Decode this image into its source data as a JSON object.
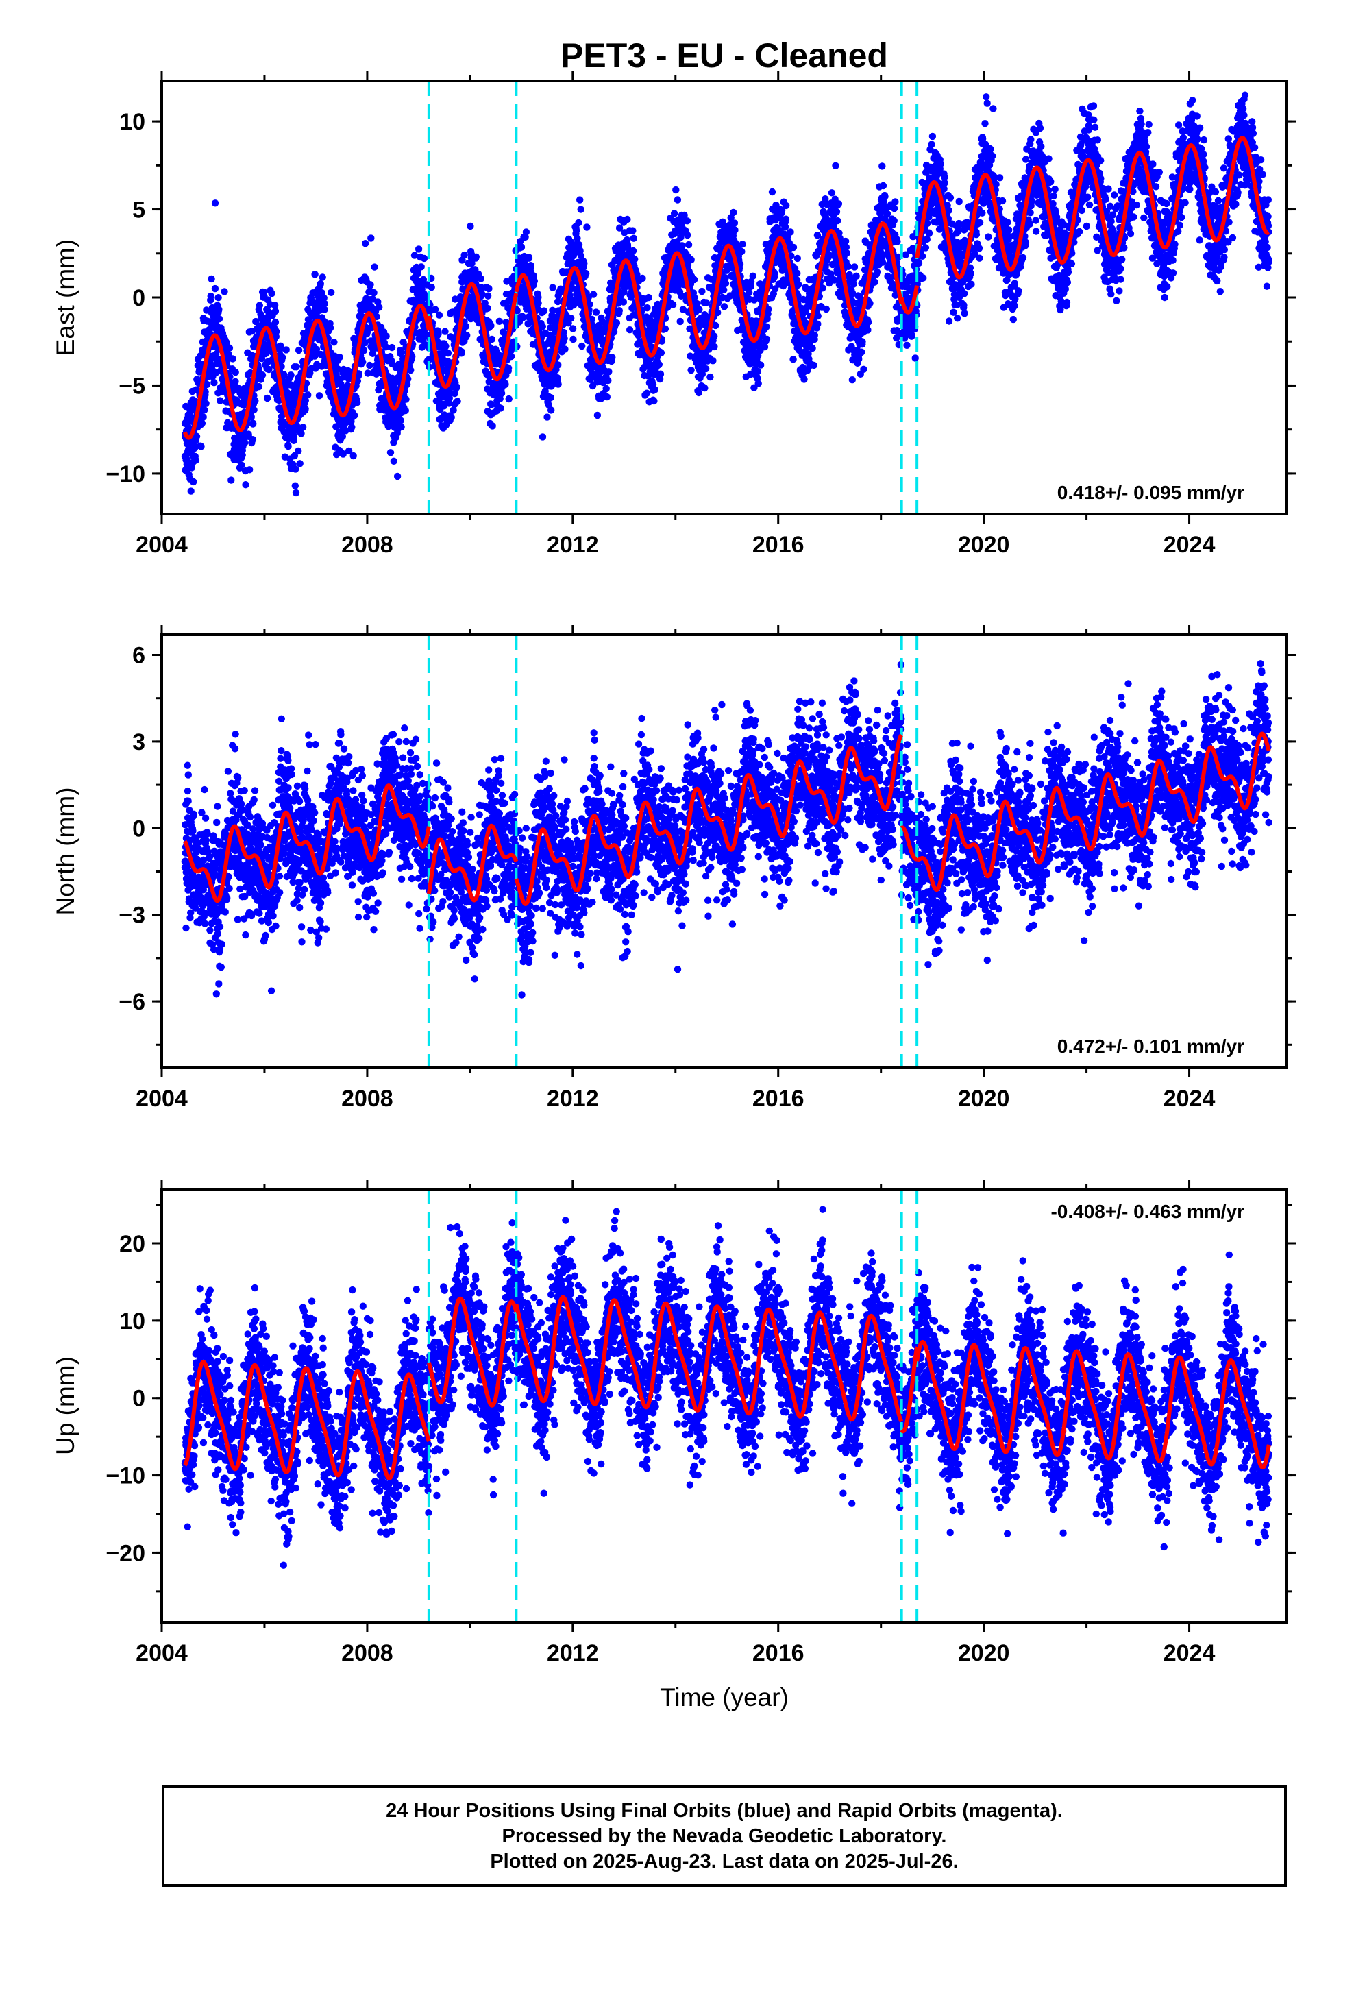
{
  "title": "PET3  - EU - Cleaned",
  "colors": {
    "data": "#0000ff",
    "model": "#ff0000",
    "offset": "#00e5ee",
    "frame": "#000000"
  },
  "chart_data": [
    {
      "type": "scatter",
      "ylabel": "East (mm)",
      "xlabel": "",
      "xlim": [
        2004.0,
        2025.9
      ],
      "ylim": [
        -12.3,
        12.3
      ],
      "xticks": [
        2004,
        2008,
        2012,
        2016,
        2020,
        2024
      ],
      "yticks": [
        -10,
        -5,
        0,
        5,
        10
      ],
      "rate_label": "0.418+/- 0.095 mm/yr",
      "rate_position": "bottom-right",
      "offsets": [
        2009.2,
        2010.9,
        2018.4,
        2018.7
      ],
      "model_segments": [
        {
          "t0": 2004.45,
          "t1": 2009.2,
          "base0": -5.2,
          "slope": 0.42,
          "amp": 2.8,
          "phase": 0.78
        },
        {
          "t0": 2009.2,
          "t1": 2010.9,
          "base0": -2.4,
          "slope": 0.42,
          "amp": 2.8,
          "phase": 0.78
        },
        {
          "t0": 2010.9,
          "t1": 2018.4,
          "base0": -1.6,
          "slope": 0.42,
          "amp": 2.8,
          "phase": 0.78
        },
        {
          "t0": 2018.4,
          "t1": 2018.7,
          "base0": 1.9,
          "slope": 0.42,
          "amp": 2.8,
          "phase": 0.78
        },
        {
          "t0": 2018.7,
          "t1": 2025.55,
          "base0": 3.6,
          "slope": 0.42,
          "amp": 2.8,
          "phase": 0.78
        }
      ],
      "scatter_noise": 1.3
    },
    {
      "type": "scatter",
      "ylabel": "North (mm)",
      "xlabel": "",
      "xlim": [
        2004.0,
        2025.9
      ],
      "ylim": [
        -8.3,
        6.7
      ],
      "xticks": [
        2004,
        2008,
        2012,
        2016,
        2020,
        2024
      ],
      "yticks": [
        -6,
        -3,
        0,
        3,
        6
      ],
      "rate_label": "0.472+/- 0.101 mm/yr",
      "rate_position": "bottom-right",
      "offsets": [
        2009.2,
        2010.9,
        2018.4,
        2018.7
      ],
      "model_segments": [
        {
          "t0": 2004.45,
          "t1": 2009.2,
          "base0": -1.6,
          "slope": 0.47,
          "amp": 0.9,
          "phase": 0.25,
          "amp2": 0.5
        },
        {
          "t0": 2009.2,
          "t1": 2010.9,
          "base0": -1.7,
          "slope": 0.47,
          "amp": 0.9,
          "phase": 0.25,
          "amp2": 0.5
        },
        {
          "t0": 2010.9,
          "t1": 2018.4,
          "base0": -1.5,
          "slope": 0.47,
          "amp": 0.9,
          "phase": 0.25,
          "amp2": 0.5
        },
        {
          "t0": 2018.4,
          "t1": 2018.7,
          "base0": -1.2,
          "slope": 0.47,
          "amp": 0.9,
          "phase": 0.25,
          "amp2": 0.5
        },
        {
          "t0": 2018.7,
          "t1": 2025.55,
          "base0": -1.1,
          "slope": 0.47,
          "amp": 0.9,
          "phase": 0.25,
          "amp2": 0.5
        }
      ],
      "scatter_noise": 1.1
    },
    {
      "type": "scatter",
      "ylabel": "Up (mm)",
      "xlabel": "Time (year)",
      "xlim": [
        2004.0,
        2025.9
      ],
      "ylim": [
        -29,
        27
      ],
      "xticks": [
        2004,
        2008,
        2012,
        2016,
        2020,
        2024
      ],
      "yticks": [
        -20,
        -10,
        0,
        10,
        20
      ],
      "rate_label": "-0.408+/- 0.463 mm/yr",
      "rate_position": "top-right",
      "offsets": [
        2009.2,
        2010.9,
        2018.4,
        2018.7
      ],
      "model_segments": [
        {
          "t0": 2004.45,
          "t1": 2009.2,
          "base0": -2.0,
          "slope": -0.4,
          "amp": 6.2,
          "phase": 0.62,
          "amp2": 1.5
        },
        {
          "t0": 2009.2,
          "t1": 2010.9,
          "base0": 6.3,
          "slope": -0.4,
          "amp": 6.2,
          "phase": 0.62,
          "amp2": 1.5
        },
        {
          "t0": 2010.9,
          "t1": 2018.4,
          "base0": 6.6,
          "slope": -0.4,
          "amp": 6.2,
          "phase": 0.62,
          "amp2": 1.5
        },
        {
          "t0": 2018.4,
          "t1": 2018.7,
          "base0": 2.5,
          "slope": -0.4,
          "amp": 6.2,
          "phase": 0.62,
          "amp2": 1.5
        },
        {
          "t0": 2018.7,
          "t1": 2025.55,
          "base0": 0.5,
          "slope": -0.4,
          "amp": 6.2,
          "phase": 0.62,
          "amp2": 1.5
        }
      ],
      "scatter_noise": 4.2
    }
  ],
  "footer": {
    "line1": "24 Hour Positions Using Final Orbits (blue) and Rapid Orbits (magenta).",
    "line2": "Processed by the Nevada Geodetic Laboratory.",
    "line3": "Plotted on 2025-Aug-23. Last data on 2025-Jul-26."
  }
}
